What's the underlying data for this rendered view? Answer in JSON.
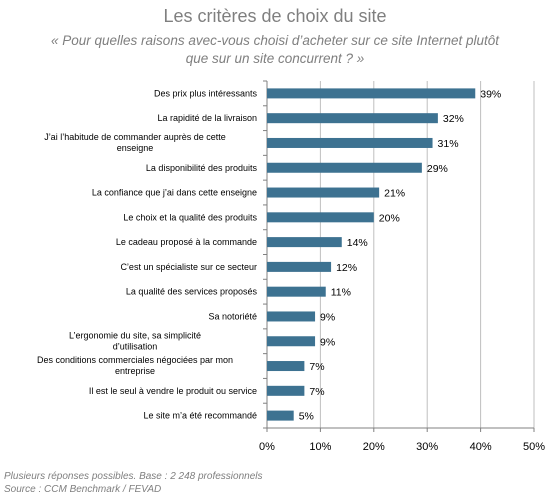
{
  "title": "Les critères de choix du site",
  "subtitle_line1": "« Pour quelles raisons avec-vous choisi d’acheter sur ce site Internet plutôt",
  "subtitle_line2": "que sur un site concurrent ? »",
  "footnote1": "Plusieurs réponses possibles. Base : 2 248 professionnels",
  "footnote2": "Source : CCM Benchmark / FEVAD",
  "colors": {
    "bar": "#3d7291",
    "grid": "#bfbfbf",
    "axis": "#808080"
  },
  "chart_data": {
    "type": "bar",
    "orientation": "horizontal",
    "categories": [
      "Des prix plus intéressants",
      "La rapidité de la livraison",
      "J’ai l’habitude de commander auprès de cette enseigne",
      "La disponibilité des produits",
      "La confiance que j’ai dans cette enseigne",
      "Le choix et la qualité des produits",
      "Le cadeau proposé à la commande",
      "C’est un spécialiste sur ce secteur",
      "La qualité des services proposés",
      "Sa notoriété",
      "L’ergonomie du site, sa simplicité d’utilisation",
      "Des conditions commerciales négociées par mon entreprise",
      "Il est le seul à vendre le produit ou service",
      "Le site m’a été recommandé"
    ],
    "values": [
      39,
      32,
      31,
      29,
      21,
      20,
      14,
      12,
      11,
      9,
      9,
      7,
      7,
      5
    ],
    "value_labels": [
      "39%",
      "32%",
      "31%",
      "29%",
      "21%",
      "20%",
      "14%",
      "12%",
      "11%",
      "9%",
      "9%",
      "7%",
      "7%",
      "5%"
    ],
    "xlim": [
      0,
      50
    ],
    "xticks": [
      "0%",
      "10%",
      "20%",
      "30%",
      "40%",
      "50%"
    ],
    "grid": true
  }
}
